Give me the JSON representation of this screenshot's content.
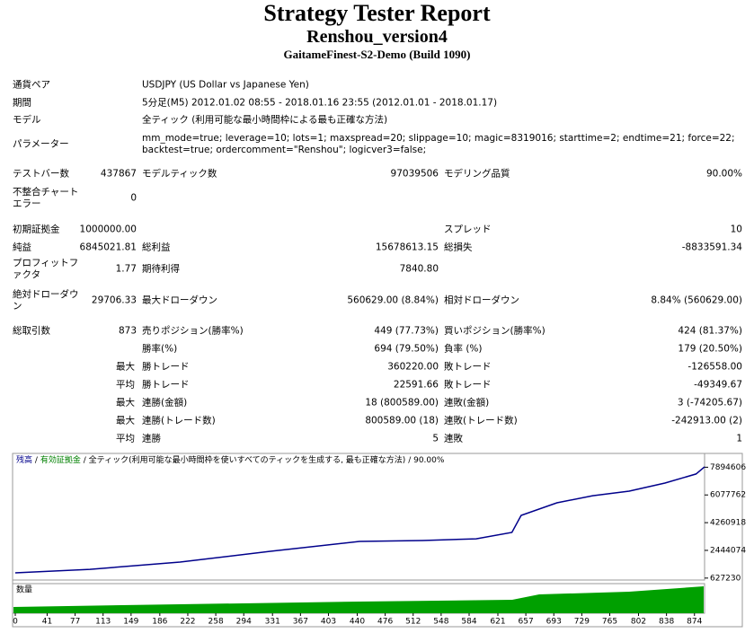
{
  "header": {
    "title": "Strategy Tester Report",
    "subtitle": "Renshou_version4",
    "build": "GaitameFinest-S2-Demo (Build 1090)"
  },
  "table": {
    "rows": [
      [
        "通貨ペア",
        "USDJPY (US Dollar vs Japanese Yen)"
      ],
      [
        "期間",
        "5分足(M5) 2012.01.02 08:55 - 2018.01.16 23:55 (2012.01.01 - 2018.01.17)"
      ],
      [
        "モデル",
        "全ティック (利用可能な最小時間枠による最も正確な方法)"
      ],
      [
        "パラメーター",
        "mm_mode=true; leverage=10; lots=1; maxspread=20; slippage=10; magic=8319016; starttime=2; endtime=21; force=22; backtest=true; ordercomment=\"Renshou\"; logicver3=false;"
      ],
      [
        "テストバー数",
        "437867",
        "モデルティック数",
        "97039506",
        "モデリング品質",
        "90.00%"
      ],
      [
        "不整合チャートエラー",
        "0"
      ],
      [
        "初期証拠金",
        "1000000.00",
        "スプレッド",
        "10"
      ],
      [
        "純益",
        "6845021.81",
        "総利益",
        "15678613.15",
        "総損失",
        "-8833591.34"
      ],
      [
        "プロフィットファクタ",
        "1.77",
        "期待利得",
        "7840.80"
      ],
      [
        "絶対ドローダウン",
        "29706.33",
        "最大ドローダウン",
        "560629.00 (8.84%)",
        "相対ドローダウン",
        "8.84% (560629.00)"
      ],
      [
        "総取引数",
        "873",
        "売りポジション(勝率%)",
        "449 (77.73%)",
        "買いポジション(勝率%)",
        "424 (81.37%)"
      ],
      [
        "勝率(%)",
        "694 (79.50%)",
        "負率 (%)",
        "179 (20.50%)"
      ],
      [
        "最大",
        "勝トレード",
        "360220.00",
        "敗トレード",
        "-126558.00"
      ],
      [
        "平均",
        "勝トレード",
        "22591.66",
        "敗トレード",
        "-49349.67"
      ],
      [
        "最大",
        "連勝(金額)",
        "18 (800589.00)",
        "連敗(金額)",
        "3 (-74205.67)"
      ],
      [
        "最大",
        "連勝(トレード数)",
        "800589.00 (18)",
        "連敗(トレード数)",
        "-242913.00 (2)"
      ],
      [
        "平均",
        "連勝",
        "5",
        "連敗",
        "1"
      ]
    ]
  },
  "chart": {
    "type": "line",
    "legend": [
      "残高",
      "有効証拠金",
      "全ティック(利用可能な最小時間枠を使いすべてのティックを生成する, 最も正確な方法)",
      "90.00%"
    ],
    "separator": "/",
    "volume_label": "数量",
    "balance": {
      "color": "#00008b",
      "x": [
        0,
        96,
        212,
        327,
        443,
        524,
        593,
        639,
        651,
        697,
        743,
        790,
        836,
        876,
        887
      ],
      "values": [
        970000,
        1200000,
        1680000,
        2380000,
        3030000,
        3090000,
        3200000,
        3620000,
        4740000,
        5560000,
        6030000,
        6330000,
        6860000,
        7450000,
        7920000
      ]
    },
    "xlim": [
      0,
      887
    ],
    "ylim": [
      500000,
      8800000
    ],
    "xticks": [
      0,
      41,
      77,
      113,
      149,
      186,
      222,
      258,
      294,
      331,
      367,
      403,
      440,
      476,
      512,
      548,
      584,
      621,
      657,
      693,
      729,
      765,
      802,
      838,
      874
    ],
    "yticks": [
      627230,
      2444074,
      4260918,
      6077762,
      7894606
    ]
  }
}
